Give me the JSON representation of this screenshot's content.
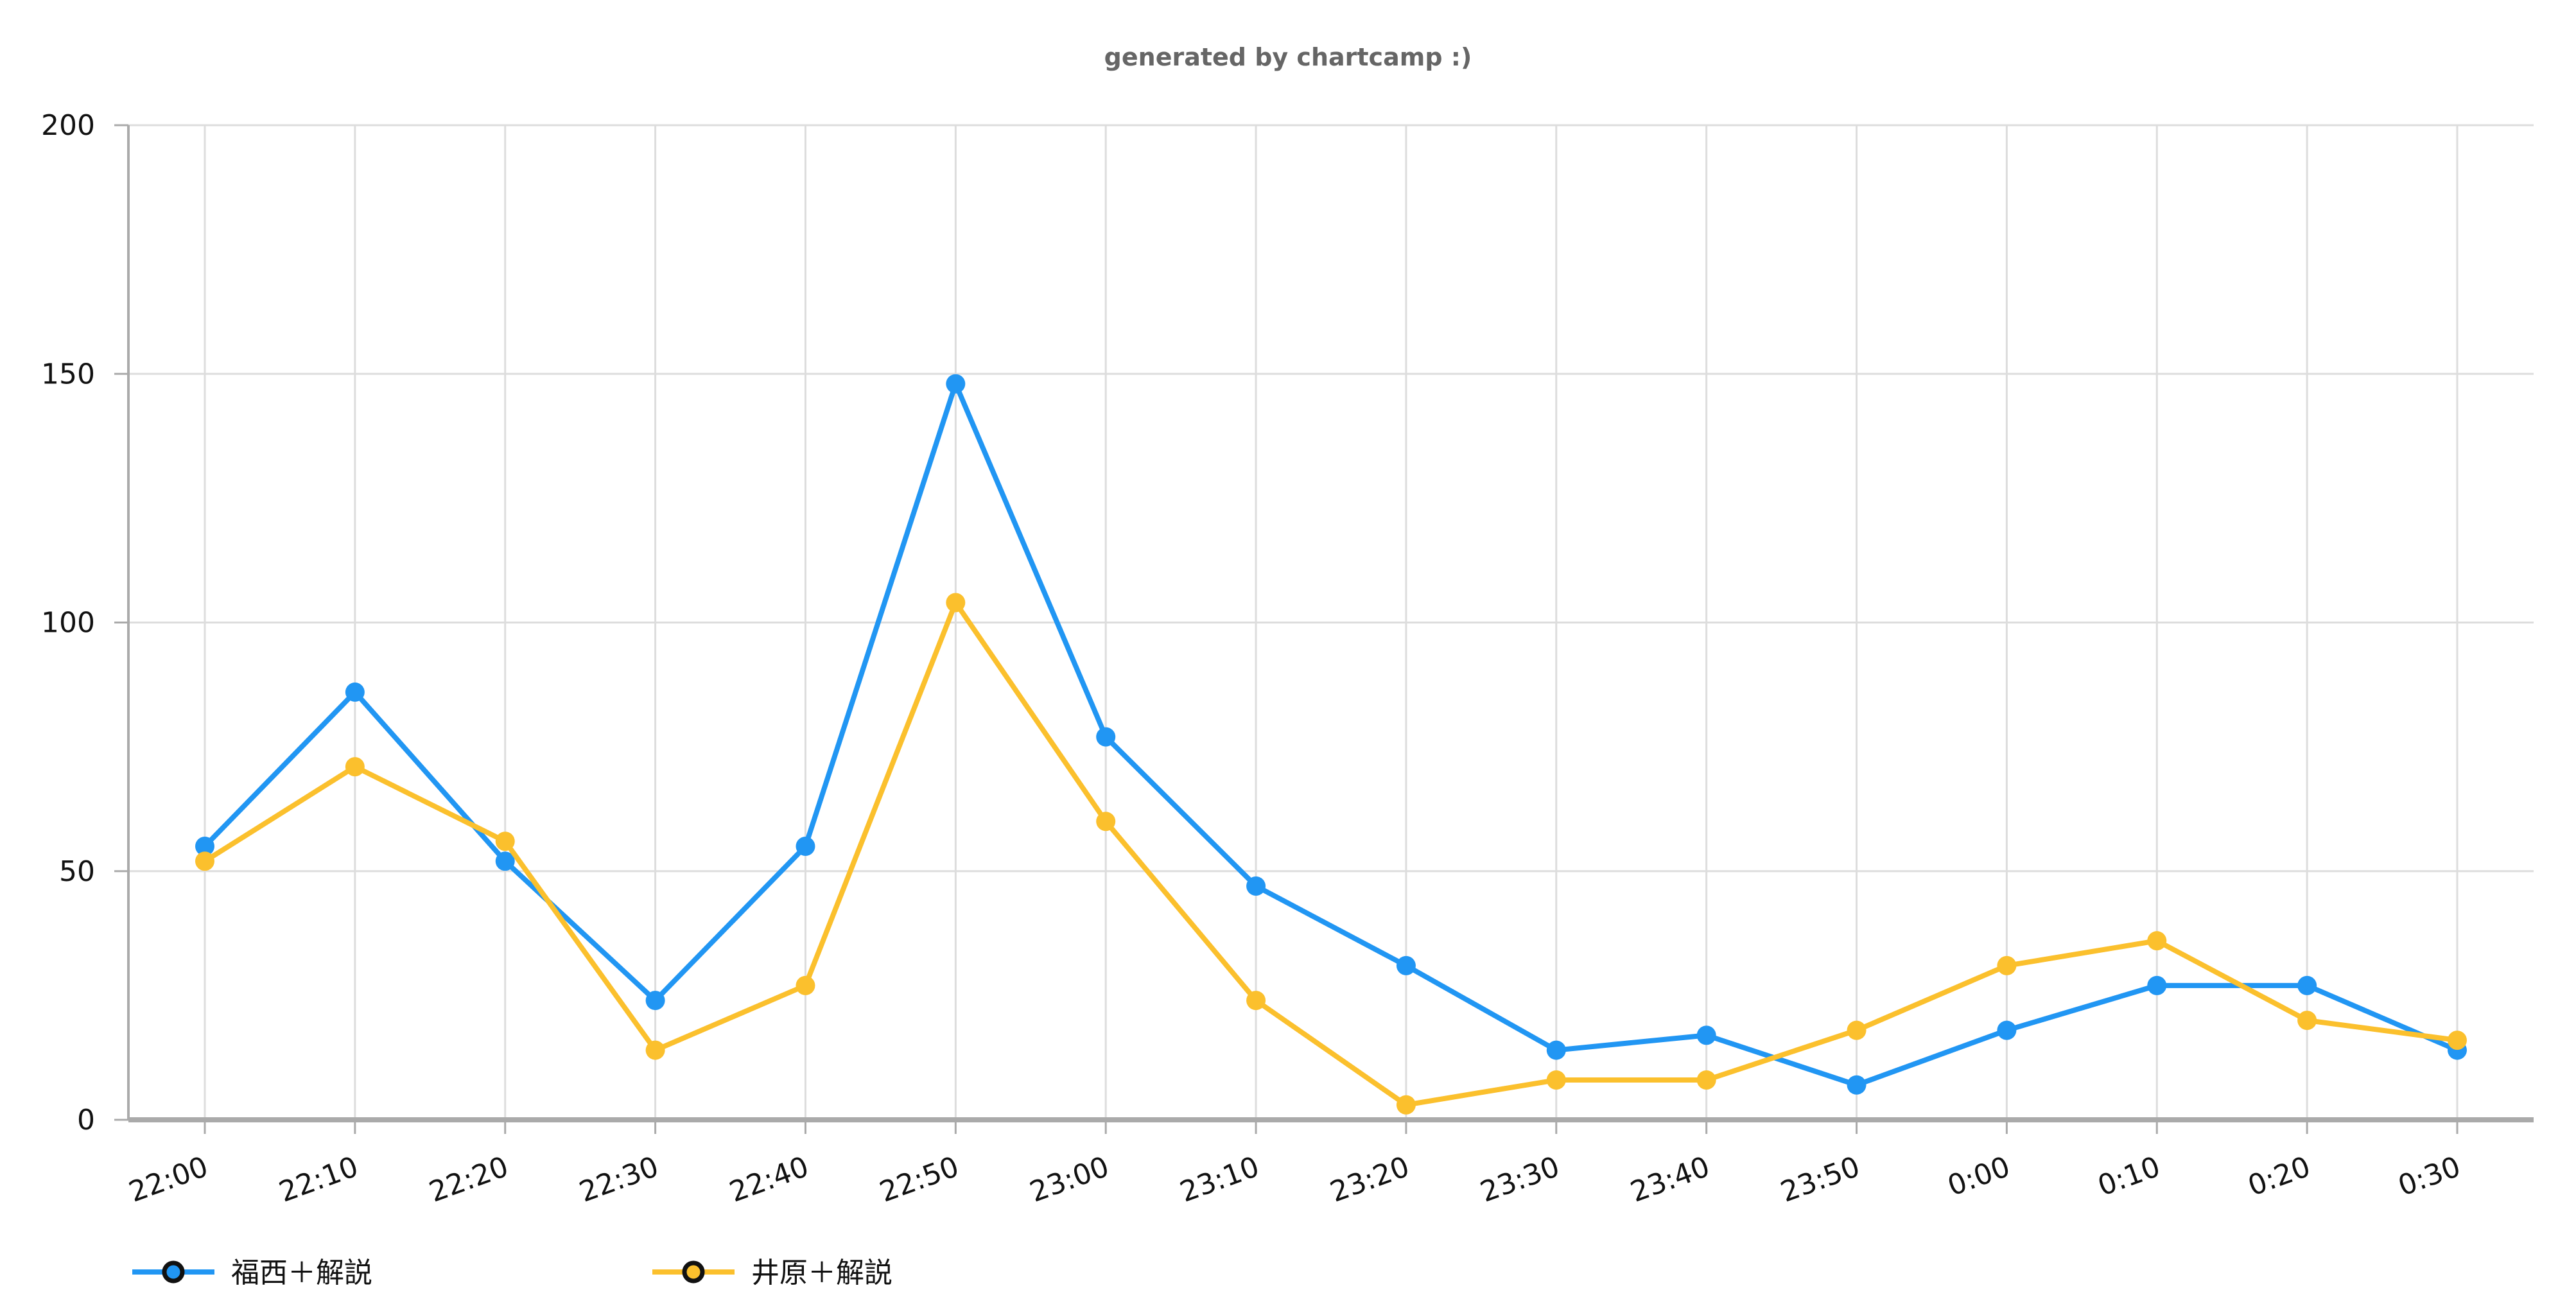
{
  "chart_data": {
    "type": "line",
    "title": "generated by chartcamp :)",
    "xlabel": "",
    "ylabel": "",
    "ylim": [
      0,
      200
    ],
    "yticks": [
      "0",
      "50",
      "100",
      "150",
      "200"
    ],
    "grid": true,
    "legend_position": "bottom-left",
    "categories": [
      "22:00",
      "22:10",
      "22:20",
      "22:30",
      "22:40",
      "22:50",
      "23:00",
      "23:10",
      "23:20",
      "23:30",
      "23:40",
      "23:50",
      "0:00",
      "0:10",
      "0:20",
      "0:30"
    ],
    "series": [
      {
        "name": "福西＋解説",
        "color": "#2196F3",
        "values": [
          55,
          86,
          52,
          24,
          55,
          148,
          77,
          47,
          31,
          14,
          17,
          7,
          18,
          27,
          27,
          14
        ]
      },
      {
        "name": "井原＋解説",
        "color": "#FBC02D",
        "values": [
          52,
          71,
          56,
          14,
          27,
          104,
          60,
          24,
          3,
          8,
          8,
          18,
          31,
          36,
          20,
          16
        ]
      }
    ]
  }
}
